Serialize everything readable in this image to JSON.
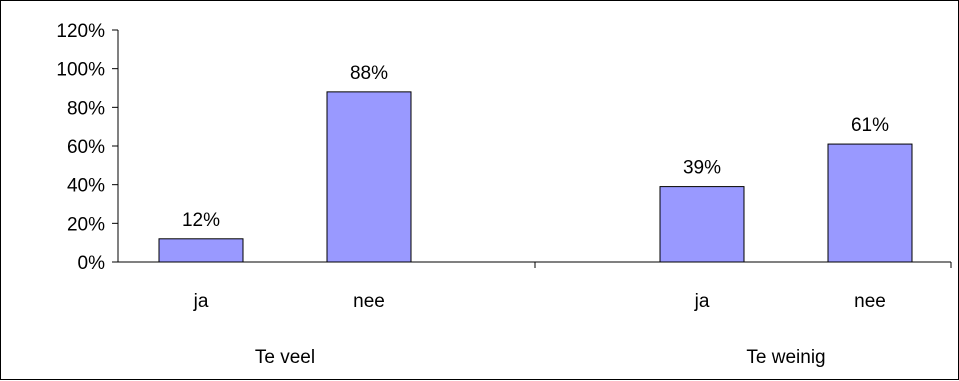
{
  "chart_data": {
    "type": "bar",
    "groups": [
      {
        "name": "Te veel",
        "categories": [
          "ja",
          "nee"
        ],
        "values": [
          12,
          88
        ],
        "labels": [
          "12%",
          "88%"
        ]
      },
      {
        "name": "Te weinig",
        "categories": [
          "ja",
          "nee"
        ],
        "values": [
          39,
          61
        ],
        "labels": [
          "39%",
          "61%"
        ]
      }
    ],
    "yticks": [
      "0%",
      "20%",
      "40%",
      "60%",
      "80%",
      "100%",
      "120%"
    ],
    "ylim": [
      0,
      120
    ],
    "grid": false,
    "legend": "none",
    "bar_color": "#9999ff",
    "bar_stroke": "#000000"
  }
}
